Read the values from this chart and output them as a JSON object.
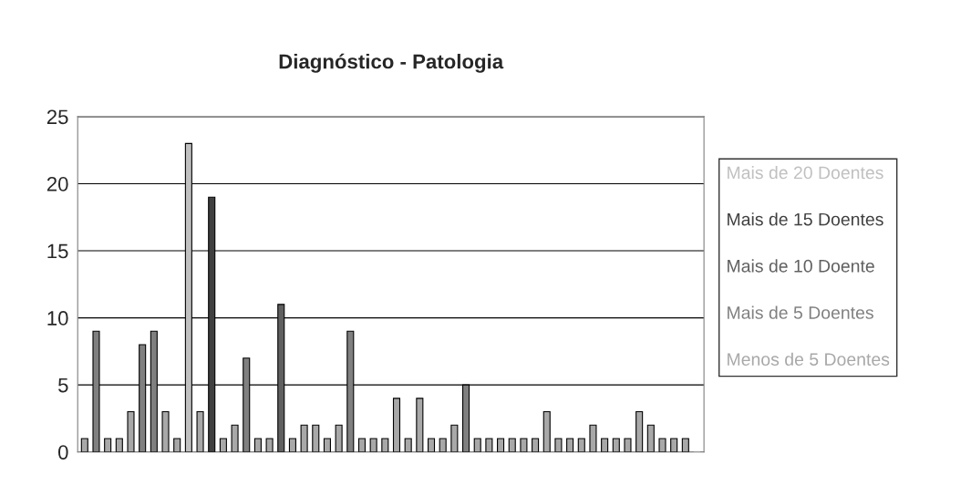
{
  "chart_data": {
    "type": "bar",
    "title": "Diagnóstico - Patologia",
    "categories": [
      null,
      null,
      null,
      null,
      null,
      null,
      null,
      null,
      null,
      null,
      null,
      null,
      null,
      null,
      null,
      null,
      null,
      null,
      null,
      null,
      null,
      null,
      null,
      null,
      null,
      null,
      null,
      null,
      null,
      null,
      null,
      null,
      null,
      null,
      null,
      null,
      null,
      null,
      null,
      null,
      null,
      null,
      null,
      null,
      null,
      null,
      null,
      null,
      null,
      null,
      null,
      null,
      null,
      null
    ],
    "series": [
      {
        "name": "Mais de 20 Doentes",
        "color": "#c0c0c0",
        "values": [
          null,
          null,
          null,
          null,
          null,
          null,
          null,
          null,
          null,
          23,
          null,
          null,
          null,
          null,
          null,
          null,
          null,
          null,
          null,
          null,
          null,
          null,
          null,
          null,
          null,
          null,
          null,
          null,
          null,
          null,
          null,
          null,
          null,
          null,
          null,
          null,
          null,
          null,
          null,
          null,
          null,
          null,
          null,
          null,
          null,
          null,
          null,
          null,
          null,
          null,
          null,
          null,
          null,
          null
        ]
      },
      {
        "name": "Mais de 15 Doentes",
        "color": "#404040",
        "values": [
          null,
          null,
          null,
          null,
          null,
          null,
          null,
          null,
          null,
          null,
          null,
          19,
          null,
          null,
          null,
          null,
          null,
          null,
          null,
          null,
          null,
          null,
          null,
          null,
          null,
          null,
          null,
          null,
          null,
          null,
          null,
          null,
          null,
          null,
          null,
          null,
          null,
          null,
          null,
          null,
          null,
          null,
          null,
          null,
          null,
          null,
          null,
          null,
          null,
          null,
          null,
          null,
          null,
          null
        ]
      },
      {
        "name": "Mais de 10 Doente",
        "color": "#606060",
        "values": [
          null,
          null,
          null,
          null,
          null,
          null,
          null,
          null,
          null,
          null,
          null,
          null,
          null,
          null,
          null,
          null,
          null,
          11,
          null,
          null,
          null,
          null,
          null,
          null,
          null,
          null,
          null,
          null,
          null,
          null,
          null,
          null,
          null,
          null,
          null,
          null,
          null,
          null,
          null,
          null,
          null,
          null,
          null,
          null,
          null,
          null,
          null,
          null,
          null,
          null,
          null,
          null,
          null,
          null
        ]
      },
      {
        "name": "Mais de 5 Doentes",
        "color": "#808080",
        "values": [
          null,
          9,
          null,
          null,
          null,
          8,
          9,
          null,
          null,
          null,
          null,
          null,
          null,
          null,
          7,
          null,
          null,
          null,
          null,
          null,
          null,
          null,
          null,
          9,
          null,
          null,
          null,
          null,
          null,
          null,
          null,
          null,
          null,
          5,
          null,
          null,
          null,
          null,
          null,
          null,
          null,
          null,
          null,
          null,
          null,
          null,
          null,
          null,
          null,
          null,
          null,
          null,
          null,
          null
        ]
      },
      {
        "name": "Menos de 5 Doentes",
        "color": "#a8a8a8",
        "values": [
          1,
          null,
          1,
          1,
          3,
          null,
          null,
          3,
          1,
          null,
          3,
          null,
          1,
          2,
          null,
          1,
          1,
          null,
          1,
          2,
          2,
          1,
          2,
          null,
          1,
          1,
          1,
          4,
          1,
          4,
          1,
          1,
          2,
          null,
          1,
          1,
          1,
          1,
          1,
          1,
          3,
          1,
          1,
          1,
          2,
          1,
          1,
          1,
          3,
          2,
          1,
          1,
          1,
          0
        ]
      }
    ],
    "ylim": [
      0,
      25
    ],
    "yticks": [
      0,
      5,
      10,
      15,
      20,
      25
    ],
    "grid": "y",
    "legend": "right"
  }
}
